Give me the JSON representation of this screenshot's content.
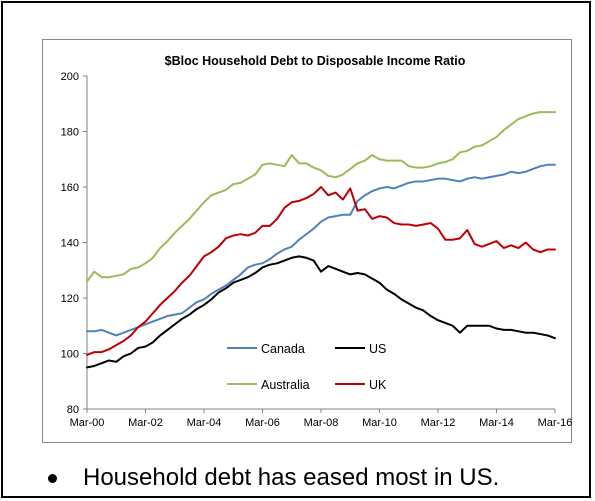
{
  "bullet": {
    "text": "Household debt has eased most in US."
  },
  "chart_data": {
    "type": "line",
    "title": "$Bloc Household Debt to Disposable Income Ratio",
    "xlabel": "",
    "ylabel": "",
    "ylim": [
      80,
      200
    ],
    "yticks": [
      80,
      100,
      120,
      140,
      160,
      180,
      200
    ],
    "xtick_labels": [
      "Mar-00",
      "Mar-02",
      "Mar-04",
      "Mar-06",
      "Mar-08",
      "Mar-10",
      "Mar-12",
      "Mar-14",
      "Mar-16"
    ],
    "grid": false,
    "legend_position": "bottom-center",
    "x_quarters": [
      "Mar-00",
      "Jun-00",
      "Sep-00",
      "Dec-00",
      "Mar-01",
      "Jun-01",
      "Sep-01",
      "Dec-01",
      "Mar-02",
      "Jun-02",
      "Sep-02",
      "Dec-02",
      "Mar-03",
      "Jun-03",
      "Sep-03",
      "Dec-03",
      "Mar-04",
      "Jun-04",
      "Sep-04",
      "Dec-04",
      "Mar-05",
      "Jun-05",
      "Sep-05",
      "Dec-05",
      "Mar-06",
      "Jun-06",
      "Sep-06",
      "Dec-06",
      "Mar-07",
      "Jun-07",
      "Sep-07",
      "Dec-07",
      "Mar-08",
      "Jun-08",
      "Sep-08",
      "Dec-08",
      "Mar-09",
      "Jun-09",
      "Sep-09",
      "Dec-09",
      "Mar-10",
      "Jun-10",
      "Sep-10",
      "Dec-10",
      "Mar-11",
      "Jun-11",
      "Sep-11",
      "Dec-11",
      "Mar-12",
      "Jun-12",
      "Sep-12",
      "Dec-12",
      "Mar-13",
      "Jun-13",
      "Sep-13",
      "Dec-13",
      "Mar-14",
      "Jun-14",
      "Sep-14",
      "Dec-14",
      "Mar-15",
      "Jun-15",
      "Sep-15",
      "Dec-15",
      "Mar-16"
    ],
    "series": [
      {
        "name": "Canada",
        "color": "#4F81BD",
        "values": [
          108,
          108,
          108.5,
          107.5,
          106.5,
          107.5,
          108.5,
          109.5,
          110.5,
          111.5,
          112.5,
          113.5,
          114,
          114.5,
          116.5,
          118.5,
          119.5,
          121.5,
          123,
          124.5,
          126.5,
          128.5,
          131,
          132,
          132.5,
          134,
          136,
          137.5,
          138.5,
          141,
          143,
          145,
          147.5,
          149,
          149.5,
          150,
          150,
          155,
          157,
          158.5,
          159.5,
          160,
          159.5,
          160.5,
          161.5,
          162,
          162,
          162.5,
          163,
          163,
          162.5,
          162,
          163,
          163.5,
          163,
          163.5,
          164,
          164.5,
          165.5,
          165,
          165.5,
          166.5,
          167.5,
          168,
          168
        ]
      },
      {
        "name": "US",
        "color": "#000000",
        "values": [
          95,
          95.5,
          96.5,
          97.5,
          97,
          99,
          100,
          102,
          102.5,
          104,
          106.5,
          108.5,
          110.5,
          112.5,
          114,
          116,
          117.5,
          119.5,
          122,
          123.5,
          125.5,
          126.5,
          127.5,
          129,
          131,
          132,
          132.5,
          133.5,
          134.5,
          135,
          134.5,
          133.5,
          129.5,
          131.5,
          130.5,
          129.5,
          128.5,
          129,
          128.5,
          127,
          125.5,
          123,
          121.5,
          119.5,
          118,
          116.5,
          115.5,
          113.5,
          112,
          111,
          110,
          107.5,
          110,
          110,
          110,
          110,
          109,
          108.5,
          108.5,
          108,
          107.5,
          107.5,
          107,
          106.5,
          105.5
        ]
      },
      {
        "name": "Australia",
        "color": "#9BBB59",
        "values": [
          126,
          129.5,
          127.5,
          127.5,
          128,
          128.5,
          130.5,
          131,
          132.5,
          134.5,
          138,
          140.5,
          143.5,
          146,
          148.5,
          151.5,
          154.5,
          157,
          158,
          159,
          161,
          161.5,
          163,
          164.5,
          168,
          168.5,
          168,
          167.5,
          171.5,
          168.5,
          168.5,
          167,
          166,
          164,
          163.5,
          164.5,
          166.5,
          168.5,
          169.5,
          171.5,
          170,
          169.5,
          169.5,
          169.5,
          167.5,
          167,
          167,
          167.5,
          168.5,
          169,
          170,
          172.5,
          173,
          174.5,
          175,
          176.5,
          178,
          180.5,
          182.5,
          184.5,
          185.5,
          186.5,
          187,
          187,
          187
        ]
      },
      {
        "name": "UK",
        "color": "#C00000",
        "values": [
          99.5,
          100.5,
          100.5,
          101.5,
          103,
          104.5,
          106.5,
          109.5,
          111.5,
          114.5,
          117.5,
          120,
          122.5,
          125.5,
          128,
          131.5,
          135,
          136.5,
          138.5,
          141.5,
          142.5,
          143,
          142.5,
          143.5,
          146,
          146,
          148.5,
          152.5,
          154.5,
          155,
          156,
          157.5,
          160,
          157,
          158,
          155.5,
          159.5,
          151.5,
          152,
          148.5,
          149.5,
          149,
          147,
          146.5,
          146.5,
          146,
          146.5,
          147,
          145,
          141,
          141,
          141.5,
          144.5,
          139.5,
          138.5,
          139.5,
          140.5,
          138,
          139,
          138,
          140,
          137.5,
          136.5,
          137.5,
          137.5
        ]
      }
    ]
  }
}
